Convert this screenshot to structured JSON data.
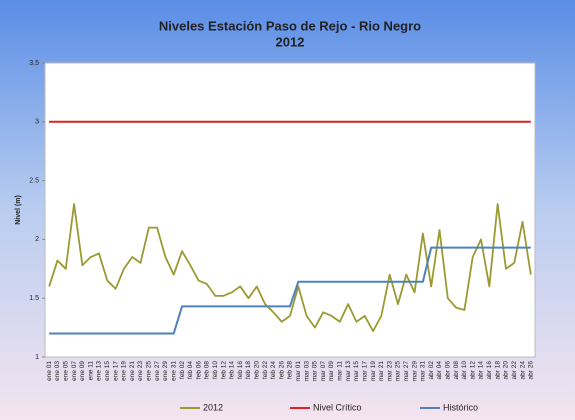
{
  "chart_data": {
    "type": "line",
    "title": "Niveles  Estación Paso de Rejo - Rio Negro",
    "subtitle": "2012",
    "ylabel": "Nivel (m)",
    "categories": [
      "ene 01",
      "ene 03",
      "ene 05",
      "ene 07",
      "ene 09",
      "ene 11",
      "ene 13",
      "ene 15",
      "ene 17",
      "ene 19",
      "ene 21",
      "ene 23",
      "ene 25",
      "ene 27",
      "ene 29",
      "ene 31",
      "feb 02",
      "feb 04",
      "feb 06",
      "feb 08",
      "feb 10",
      "feb 12",
      "feb 14",
      "feb 16",
      "feb 18",
      "feb 20",
      "feb 22",
      "feb 24",
      "feb 26",
      "feb 28",
      "mar 01",
      "mar 03",
      "mar 05",
      "mar 07",
      "mar 09",
      "mar 11",
      "mar 13",
      "mar 15",
      "mar 17",
      "mar 19",
      "mar 21",
      "mar 23",
      "mar 25",
      "mar 27",
      "mar 29",
      "mar 31",
      "abr 02",
      "abr 04",
      "abr 06",
      "abr 08",
      "abr 10",
      "abr 12",
      "abr 14",
      "abr 16",
      "abr 18",
      "abr 20",
      "abr 22",
      "abr 24",
      "abr 26"
    ],
    "series": [
      {
        "name": "2012",
        "color": "#9a9a32",
        "values": [
          1.6,
          1.82,
          1.75,
          2.3,
          1.78,
          1.85,
          1.88,
          1.65,
          1.58,
          1.75,
          1.85,
          1.8,
          2.1,
          2.1,
          1.85,
          1.7,
          1.9,
          1.78,
          1.65,
          1.62,
          1.52,
          1.52,
          1.55,
          1.6,
          1.5,
          1.6,
          1.45,
          1.38,
          1.3,
          1.35,
          1.6,
          1.35,
          1.25,
          1.38,
          1.35,
          1.3,
          1.45,
          1.3,
          1.35,
          1.22,
          1.35,
          1.7,
          1.45,
          1.7,
          1.55,
          2.05,
          1.6,
          2.08,
          1.5,
          1.42,
          1.4,
          1.85,
          2.0,
          1.6,
          2.3,
          1.75,
          1.8,
          2.15,
          1.7
        ]
      },
      {
        "name": "Nivel Crítico",
        "color": "#e02020",
        "values": [
          3,
          3,
          3,
          3,
          3,
          3,
          3,
          3,
          3,
          3,
          3,
          3,
          3,
          3,
          3,
          3,
          3,
          3,
          3,
          3,
          3,
          3,
          3,
          3,
          3,
          3,
          3,
          3,
          3,
          3,
          3,
          3,
          3,
          3,
          3,
          3,
          3,
          3,
          3,
          3,
          3,
          3,
          3,
          3,
          3,
          3,
          3,
          3,
          3,
          3,
          3,
          3,
          3,
          3,
          3,
          3,
          3,
          3,
          3
        ]
      },
      {
        "name": "Histórico",
        "color": "#4f81bd",
        "values": [
          1.2,
          1.2,
          1.2,
          1.2,
          1.2,
          1.2,
          1.2,
          1.2,
          1.2,
          1.2,
          1.2,
          1.2,
          1.2,
          1.2,
          1.2,
          1.2,
          1.43,
          1.43,
          1.43,
          1.43,
          1.43,
          1.43,
          1.43,
          1.43,
          1.43,
          1.43,
          1.43,
          1.43,
          1.43,
          1.43,
          1.64,
          1.64,
          1.64,
          1.64,
          1.64,
          1.64,
          1.64,
          1.64,
          1.64,
          1.64,
          1.64,
          1.64,
          1.64,
          1.64,
          1.64,
          1.64,
          1.93,
          1.93,
          1.93,
          1.93,
          1.93,
          1.93,
          1.93,
          1.93,
          1.93,
          1.93,
          1.93,
          1.93,
          1.93
        ]
      }
    ],
    "ylim": [
      1,
      3.5
    ],
    "yticks": [
      1,
      1.5,
      2,
      2.5,
      3,
      3.5
    ],
    "legend": "bottom"
  }
}
